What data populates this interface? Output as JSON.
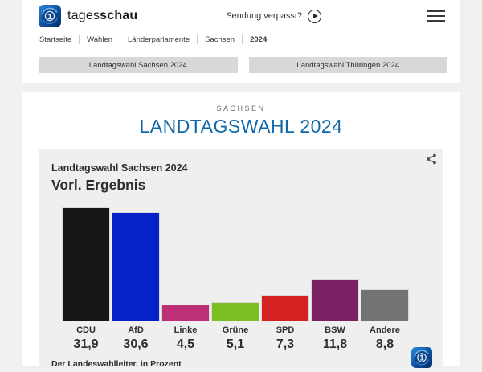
{
  "brand": {
    "name_regular": "tages",
    "name_bold": "schau"
  },
  "header": {
    "missed_broadcast": "Sendung verpasst?"
  },
  "breadcrumb": {
    "items": [
      "Startseite",
      "Wahlen",
      "Länderparlamente",
      "Sachsen",
      "2024"
    ]
  },
  "quick_links": {
    "sachsen": "Landtagswahl Sachsen 2024",
    "thueringen": "Landtagswahl Thüringen 2024"
  },
  "page": {
    "kicker": "SACHSEN",
    "title": "LANDTAGSWAHL 2024",
    "title_color": "#1068A8"
  },
  "chart_data": {
    "type": "bar",
    "title": "Landtagswahl Sachsen 2024",
    "subtitle": "Vorl. Ergebnis",
    "categories": [
      "CDU",
      "AfD",
      "Linke",
      "Grüne",
      "SPD",
      "BSW",
      "Andere"
    ],
    "values": [
      31.9,
      30.6,
      4.5,
      5.1,
      7.3,
      11.8,
      8.8
    ],
    "value_labels": [
      "31,9",
      "30,6",
      "4,5",
      "5,1",
      "7,3",
      "11,8",
      "8,8"
    ],
    "colors": [
      "#171717",
      "#0522C8",
      "#BE3075",
      "#7BBE23",
      "#D42222",
      "#7C2064",
      "#737373"
    ],
    "unit": "percent",
    "ylim": [
      0,
      32
    ],
    "grid": false,
    "legend": "none",
    "source": "Der Landeswahlleiter, in Prozent"
  },
  "icons": {
    "share": "share-icon",
    "play": "play-circle-icon",
    "menu": "hamburger-menu-icon",
    "logo": "tagesschau-globe-logo"
  }
}
